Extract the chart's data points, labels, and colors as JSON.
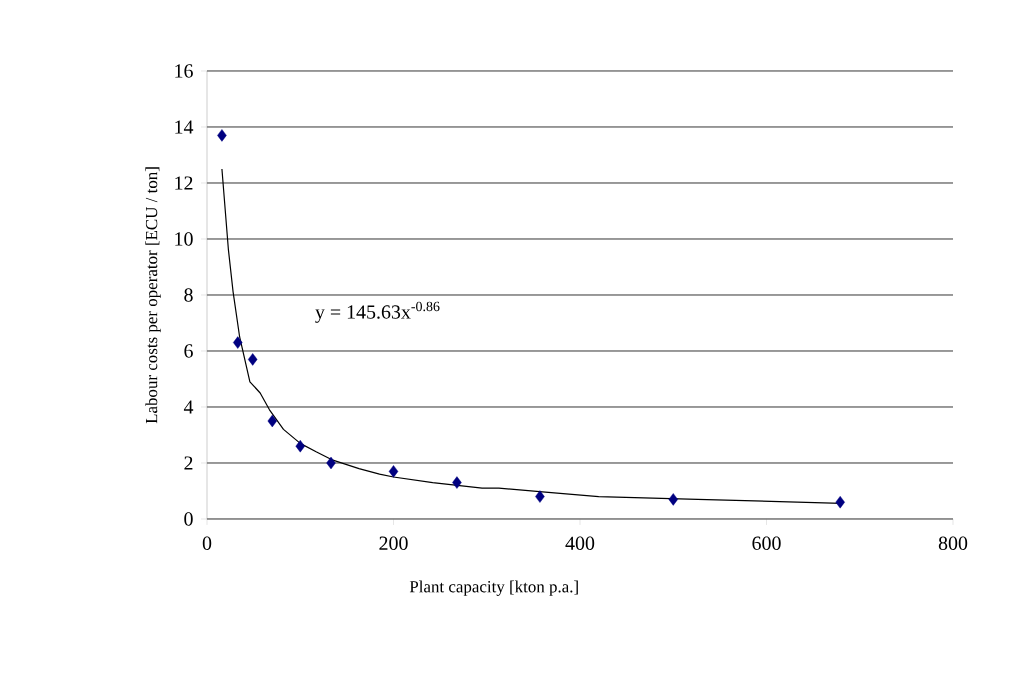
{
  "chart_data": {
    "type": "scatter",
    "xlabel": "Plant capacity [kton p.a.]",
    "ylabel": "Labour costs per operator [ECU / ton]",
    "xlim": [
      0,
      800
    ],
    "xticks": [
      0,
      200,
      400,
      600,
      800
    ],
    "ylim": [
      0,
      16
    ],
    "yticks": [
      0,
      2,
      4,
      6,
      8,
      10,
      12,
      14,
      16
    ],
    "grid": "y",
    "annotations": [
      "y = 145.63x$^{-0.86}$"
    ],
    "series": [
      {
        "marker": "diamond",
        "color": "#000080",
        "x": [
          16,
          33,
          49,
          70,
          100,
          133,
          200,
          268,
          357,
          500,
          679
        ],
        "values": [
          13.7,
          6.3,
          5.7,
          3.5,
          2.6,
          2.0,
          1.7,
          1.3,
          0.8,
          0.7,
          0.6
        ]
      },
      {
        "type": "line",
        "marker": "none",
        "line_style": "solid",
        "color": "#000000",
        "x": [
          16,
          23,
          28,
          35,
          46,
          57,
          67,
          82,
          100,
          117,
          135,
          163,
          185,
          200,
          242,
          295,
          313,
          366,
          420,
          526,
          680
        ],
        "values": [
          12.5,
          9.6,
          8.1,
          6.5,
          4.9,
          4.5,
          3.9,
          3.2,
          2.7,
          2.4,
          2.1,
          1.8,
          1.6,
          1.5,
          1.3,
          1.1,
          1.1,
          0.95,
          0.8,
          0.7,
          0.56
        ]
      }
    ]
  }
}
